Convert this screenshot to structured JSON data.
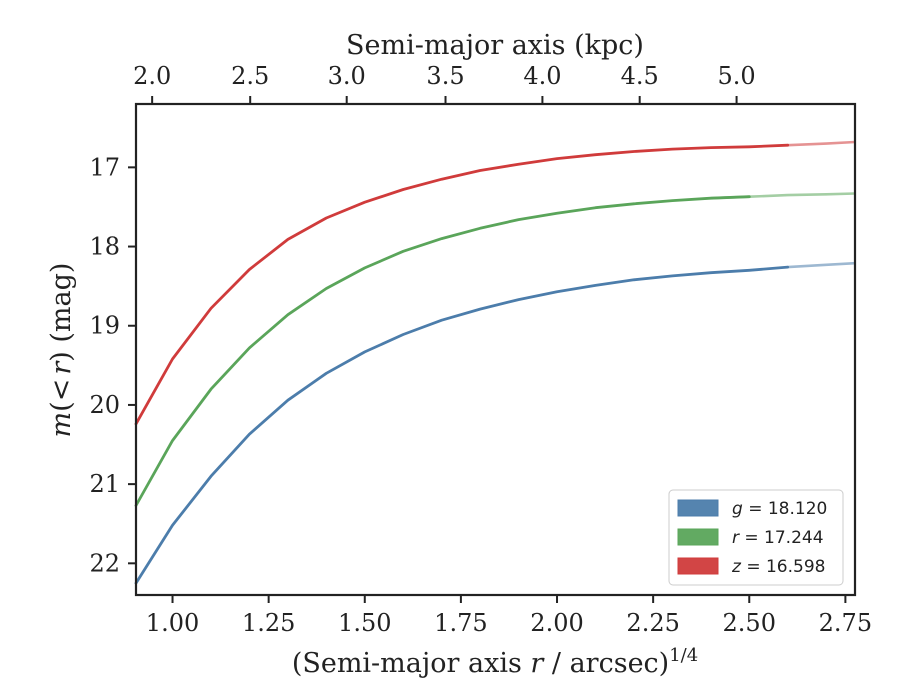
{
  "chart_data": {
    "type": "line",
    "title": "",
    "xlabel": "(Semi-major axis r / arcsec)",
    "xlabel_parts": {
      "prefix": "(Semi-major axis ",
      "var": "r",
      "suffix": " / arcsec)",
      "exponent": "1/4"
    },
    "ylabel": "m(< r) (mag)",
    "ylabel_parts": {
      "var_m": "m",
      "inner": "(",
      "lt": "<",
      "var_r": "r",
      "close": ")",
      "unit": " (mag)"
    },
    "top_xlabel": "Semi-major axis (kpc)",
    "xlim": [
      0.905,
      2.775
    ],
    "ylim": [
      22.4,
      16.2
    ],
    "y_inverted": true,
    "grid": false,
    "legend_position": "lower-right",
    "x_ticks": [
      "1.00",
      "1.25",
      "1.50",
      "1.75",
      "2.00",
      "2.25",
      "2.50",
      "2.75"
    ],
    "x_tick_values": [
      1.0,
      1.25,
      1.5,
      1.75,
      2.0,
      2.25,
      2.5,
      2.75
    ],
    "y_ticks": [
      "17",
      "18",
      "19",
      "20",
      "21",
      "22"
    ],
    "y_tick_values": [
      17,
      18,
      19,
      20,
      21,
      22
    ],
    "top_ticks": [
      "2.0",
      "2.5",
      "3.0",
      "3.5",
      "4.0",
      "4.5",
      "5.0"
    ],
    "top_tick_positions_x": [
      0.947,
      1.202,
      1.453,
      1.71,
      1.962,
      2.215,
      2.467
    ],
    "series": [
      {
        "band": "g",
        "legend_value": "18.120",
        "color": "#4c7dab",
        "x": [
          0.905,
          1.0,
          1.1,
          1.2,
          1.3,
          1.4,
          1.5,
          1.6,
          1.7,
          1.8,
          1.9,
          2.0,
          2.1,
          2.2,
          2.3,
          2.4,
          2.5,
          2.6,
          2.7,
          2.775
        ],
        "y": [
          22.25,
          21.52,
          20.9,
          20.37,
          19.94,
          19.6,
          19.33,
          19.11,
          18.93,
          18.79,
          18.67,
          18.57,
          18.49,
          18.42,
          18.37,
          18.33,
          18.3,
          18.26,
          18.23,
          18.21
        ],
        "extrapolated_from": 2.62
      },
      {
        "band": "r",
        "legend_value": "17.244",
        "color": "#5aa55a",
        "x": [
          0.905,
          1.0,
          1.1,
          1.2,
          1.3,
          1.4,
          1.5,
          1.6,
          1.7,
          1.8,
          1.9,
          2.0,
          2.1,
          2.2,
          2.3,
          2.4,
          2.5,
          2.6,
          2.7,
          2.775
        ],
        "y": [
          21.27,
          20.45,
          19.8,
          19.28,
          18.86,
          18.53,
          18.27,
          18.06,
          17.9,
          17.77,
          17.66,
          17.58,
          17.51,
          17.46,
          17.42,
          17.39,
          17.37,
          17.35,
          17.34,
          17.33
        ],
        "extrapolated_from": 2.5
      },
      {
        "band": "z",
        "legend_value": "16.598",
        "color": "#d03b3b",
        "x": [
          0.905,
          1.0,
          1.1,
          1.2,
          1.3,
          1.4,
          1.5,
          1.6,
          1.7,
          1.8,
          1.9,
          2.0,
          2.1,
          2.2,
          2.3,
          2.4,
          2.5,
          2.6,
          2.7,
          2.775
        ],
        "y": [
          20.24,
          19.42,
          18.78,
          18.29,
          17.91,
          17.64,
          17.44,
          17.28,
          17.15,
          17.04,
          16.96,
          16.89,
          16.84,
          16.8,
          16.77,
          16.75,
          16.74,
          16.72,
          16.7,
          16.68
        ],
        "extrapolated_from": 2.62
      }
    ]
  }
}
